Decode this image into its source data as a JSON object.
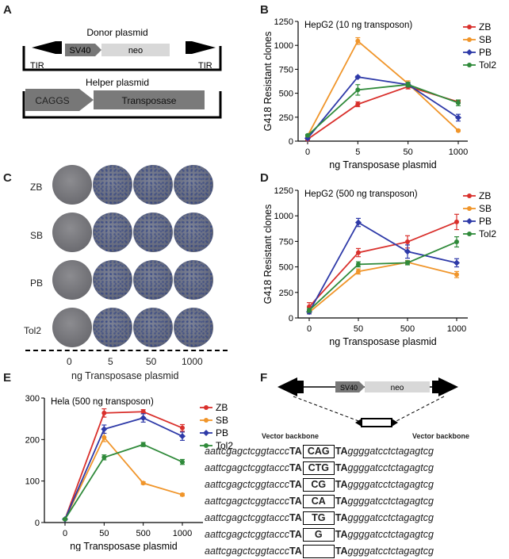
{
  "panels": {
    "A": "A",
    "B": "B",
    "C": "C",
    "D": "D",
    "E": "E",
    "F": "F"
  },
  "panelA": {
    "donor_label": "Donor plasmid",
    "sv40": "SV40",
    "neo": "neo",
    "tir_left": "TIR",
    "tir_right": "TIR",
    "helper_label": "Helper plasmid",
    "caggs": "CAGGS",
    "transposase": "Transposase"
  },
  "panelC": {
    "rows": [
      "ZB",
      "SB",
      "PB",
      "Tol2"
    ],
    "cols": [
      "0",
      "5",
      "50",
      "1000"
    ],
    "xlabel": "ng Transposase plasmid"
  },
  "panelF": {
    "sv40": "SV40",
    "neo": "neo",
    "vector_left": "Vector backbone",
    "vector_right": "Vector backbone",
    "seq_left": "aattcgagctcggtaccc",
    "ta": "TA",
    "seq_right": "ggggatcctctagagtcg",
    "inserts": [
      "CAG",
      "CTG",
      "CG",
      "CA",
      "TG",
      "G",
      ""
    ]
  },
  "colors": {
    "ZB": "#d9302c",
    "SB": "#f0952a",
    "PB": "#2e3aa8",
    "Tol2": "#2f8a3a"
  },
  "chart_data": [
    {
      "type": "line",
      "panel": "B",
      "title": "HepG2 (10 ng transposon)",
      "xlabel": "ng Transposase plasmid",
      "ylabel": "G418 Resistant clones",
      "categories": [
        "0",
        "5",
        "50",
        "1000"
      ],
      "ylim": [
        0,
        1250
      ],
      "yticks": [
        0,
        250,
        500,
        750,
        1000,
        1250
      ],
      "legend_position": "top-right",
      "series": [
        {
          "name": "ZB",
          "values": [
            20,
            385,
            570,
            410
          ],
          "err": [
            5,
            25,
            25,
            15
          ]
        },
        {
          "name": "SB",
          "values": [
            55,
            1045,
            600,
            110
          ],
          "err": [
            8,
            35,
            30,
            8
          ]
        },
        {
          "name": "PB",
          "values": [
            30,
            670,
            590,
            245
          ],
          "err": [
            5,
            10,
            15,
            35
          ]
        },
        {
          "name": "Tol2",
          "values": [
            60,
            535,
            590,
            400
          ],
          "err": [
            8,
            55,
            25,
            30
          ]
        }
      ]
    },
    {
      "type": "line",
      "panel": "D",
      "title": "HepG2 (500 ng transposon)",
      "xlabel": "ng Transposase plasmid",
      "ylabel": "G418 Resistant clones",
      "categories": [
        "0",
        "50",
        "500",
        "1000"
      ],
      "ylim": [
        0,
        1250
      ],
      "yticks": [
        0,
        250,
        500,
        750,
        1000,
        1250
      ],
      "legend_position": "top-right",
      "series": [
        {
          "name": "ZB",
          "values": [
            110,
            640,
            745,
            940
          ],
          "err": [
            40,
            40,
            60,
            75
          ]
        },
        {
          "name": "SB",
          "values": [
            55,
            455,
            545,
            425
          ],
          "err": [
            15,
            25,
            15,
            30
          ]
        },
        {
          "name": "PB",
          "values": [
            60,
            935,
            650,
            540
          ],
          "err": [
            20,
            40,
            65,
            40
          ]
        },
        {
          "name": "Tol2",
          "values": [
            75,
            525,
            540,
            745
          ],
          "err": [
            20,
            25,
            20,
            50
          ]
        }
      ]
    },
    {
      "type": "line",
      "panel": "E",
      "title": "Hela (500 ng transposon)",
      "xlabel": "ng Transposase plasmid",
      "ylabel": "",
      "categories": [
        "0",
        "50",
        "500",
        "1000"
      ],
      "ylim": [
        0,
        300
      ],
      "yticks": [
        0,
        100,
        200,
        300
      ],
      "legend_position": "top-right",
      "series": [
        {
          "name": "ZB",
          "values": [
            8,
            264,
            267,
            228
          ],
          "err": [
            2,
            10,
            5,
            8
          ]
        },
        {
          "name": "SB",
          "values": [
            8,
            205,
            95,
            67
          ],
          "err": [
            2,
            10,
            3,
            3
          ]
        },
        {
          "name": "PB",
          "values": [
            8,
            225,
            252,
            208
          ],
          "err": [
            2,
            10,
            10,
            10
          ]
        },
        {
          "name": "Tol2",
          "values": [
            8,
            157,
            188,
            146
          ],
          "err": [
            2,
            6,
            5,
            6
          ]
        }
      ]
    }
  ]
}
